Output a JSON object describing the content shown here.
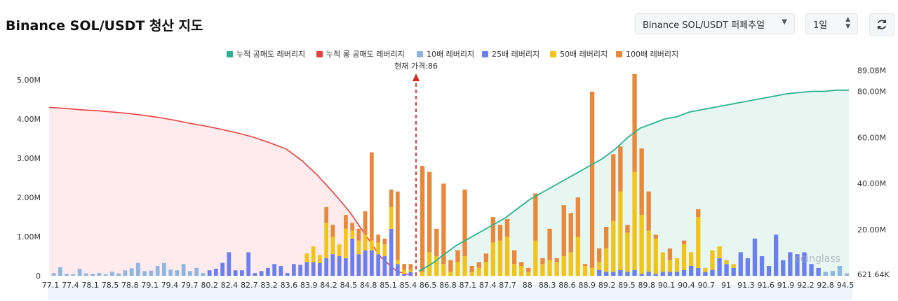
{
  "header": {
    "title": "Binance SOL/USDT 청산 지도",
    "pair_select": "Binance SOL/USDT 퍼페추얼",
    "period_select": "1일",
    "refresh_icon": "refresh-icon"
  },
  "chart_data": {
    "type": "bar",
    "title": "Binance SOL/USDT 청산 지도",
    "current_price_label": "현재 가격:86",
    "current_price": 86,
    "watermark": "coinglass",
    "legend": [
      {
        "name": "누적 공매도 레버리지",
        "color": "#2bb38f"
      },
      {
        "name": "누적 롱 공매도 레버리지",
        "color": "#e8413f"
      },
      {
        "name": "10배 레버리지",
        "color": "#8fb6e0"
      },
      {
        "name": "25배 레버리지",
        "color": "#6b7ff0"
      },
      {
        "name": "50배 레버리지",
        "color": "#f0c419"
      },
      {
        "name": "100배 레버리지",
        "color": "#e8883a"
      }
    ],
    "y_left": {
      "ticks": [
        "5.00M",
        "4.00M",
        "3.00M",
        "2.00M",
        "1.00M",
        "0"
      ],
      "range": [
        0,
        5000000
      ]
    },
    "y_right": {
      "ticks": [
        "89.08M",
        "80.00M",
        "60.00M",
        "40.00M",
        "20.00M",
        "621.64K"
      ],
      "range": [
        0,
        85000000
      ]
    },
    "x_ticks": [
      "77.1",
      "77.4",
      "78.1",
      "78.5",
      "78.8",
      "79.1",
      "79.4",
      "79.7",
      "80.2",
      "82.4",
      "82.7",
      "83.2",
      "83.6",
      "83.9",
      "84.2",
      "84.5",
      "84.8",
      "85.1",
      "85.4",
      "86.5",
      "86.8",
      "87.1",
      "87.4",
      "87.7",
      "88",
      "88.3",
      "88.6",
      "88.9",
      "89.2",
      "89.5",
      "89.8",
      "90.1",
      "90.4",
      "90.7",
      "91",
      "91.3",
      "91.6",
      "91.9",
      "92.2",
      "92.8",
      "94.5"
    ],
    "long_bars": [
      {
        "l10": 0.07,
        "l25": 0,
        "l50": 0,
        "l100": 0
      },
      {
        "l10": 0.22,
        "l25": 0,
        "l50": 0,
        "l100": 0
      },
      {
        "l10": 0.05,
        "l25": 0,
        "l50": 0,
        "l100": 0
      },
      {
        "l10": 0.04,
        "l25": 0,
        "l50": 0,
        "l100": 0
      },
      {
        "l10": 0.18,
        "l25": 0,
        "l50": 0,
        "l100": 0
      },
      {
        "l10": 0.06,
        "l25": 0,
        "l50": 0,
        "l100": 0
      },
      {
        "l10": 0.05,
        "l25": 0,
        "l50": 0,
        "l100": 0
      },
      {
        "l10": 0.07,
        "l25": 0,
        "l50": 0,
        "l100": 0
      },
      {
        "l10": 0.04,
        "l25": 0,
        "l50": 0,
        "l100": 0
      },
      {
        "l10": 0.1,
        "l25": 0,
        "l50": 0,
        "l100": 0
      },
      {
        "l10": 0.06,
        "l25": 0,
        "l50": 0,
        "l100": 0
      },
      {
        "l10": 0.14,
        "l25": 0,
        "l50": 0,
        "l100": 0
      },
      {
        "l10": 0.19,
        "l25": 0,
        "l50": 0,
        "l100": 0
      },
      {
        "l10": 0.33,
        "l25": 0,
        "l50": 0,
        "l100": 0
      },
      {
        "l10": 0.12,
        "l25": 0,
        "l50": 0,
        "l100": 0
      },
      {
        "l10": 0.13,
        "l25": 0,
        "l50": 0,
        "l100": 0
      },
      {
        "l10": 0.25,
        "l25": 0,
        "l50": 0,
        "l100": 0
      },
      {
        "l10": 0.33,
        "l25": 0,
        "l50": 0,
        "l100": 0
      },
      {
        "l10": 0.16,
        "l25": 0,
        "l50": 0,
        "l100": 0
      },
      {
        "l10": 0.14,
        "l25": 0,
        "l50": 0,
        "l100": 0
      },
      {
        "l10": 0.3,
        "l25": 0,
        "l50": 0,
        "l100": 0
      },
      {
        "l10": 0.12,
        "l25": 0,
        "l50": 0,
        "l100": 0
      },
      {
        "l10": 0.2,
        "l25": 0,
        "l50": 0,
        "l100": 0
      },
      {
        "l10": 0.07,
        "l25": 0,
        "l50": 0,
        "l100": 0
      },
      {
        "l10": 0,
        "l25": 0.14,
        "l50": 0,
        "l100": 0
      },
      {
        "l10": 0,
        "l25": 0.18,
        "l50": 0,
        "l100": 0
      },
      {
        "l10": 0,
        "l25": 0.33,
        "l50": 0,
        "l100": 0
      },
      {
        "l10": 0,
        "l25": 0.6,
        "l50": 0,
        "l100": 0
      },
      {
        "l10": 0,
        "l25": 0.14,
        "l50": 0,
        "l100": 0
      },
      {
        "l10": 0,
        "l25": 0.14,
        "l50": 0,
        "l100": 0
      },
      {
        "l10": 0,
        "l25": 0.6,
        "l50": 0,
        "l100": 0
      },
      {
        "l10": 0,
        "l25": 0.07,
        "l50": 0,
        "l100": 0
      },
      {
        "l10": 0,
        "l25": 0.12,
        "l50": 0,
        "l100": 0
      },
      {
        "l10": 0,
        "l25": 0.2,
        "l50": 0,
        "l100": 0
      },
      {
        "l10": 0,
        "l25": 0.3,
        "l50": 0,
        "l100": 0
      },
      {
        "l10": 0,
        "l25": 0.25,
        "l50": 0,
        "l100": 0
      },
      {
        "l10": 0,
        "l25": 0.07,
        "l50": 0,
        "l100": 0
      },
      {
        "l10": 0,
        "l25": 0.3,
        "l50": 0,
        "l100": 0
      },
      {
        "l10": 0,
        "l25": 0.28,
        "l50": 0,
        "l100": 0
      },
      {
        "l10": 0,
        "l25": 0.35,
        "l50": 0.22,
        "l100": 0
      },
      {
        "l10": 0,
        "l25": 0.35,
        "l50": 0.4,
        "l100": 0
      },
      {
        "l10": 0,
        "l25": 0.33,
        "l50": 0.2,
        "l100": 0
      },
      {
        "l10": 0,
        "l25": 0.45,
        "l50": 0.9,
        "l100": 0.4
      },
      {
        "l10": 0,
        "l25": 0.55,
        "l50": 0.45,
        "l100": 0.3
      },
      {
        "l10": 0,
        "l25": 0.5,
        "l50": 0.3,
        "l100": 0
      },
      {
        "l10": 0,
        "l25": 0.45,
        "l50": 0.75,
        "l100": 0.35
      },
      {
        "l10": 0,
        "l25": 0.95,
        "l50": 0.2,
        "l100": 0.2
      },
      {
        "l10": 0,
        "l25": 0.55,
        "l50": 0.35,
        "l100": 0.3
      },
      {
        "l10": 0,
        "l25": 0.65,
        "l50": 0.4,
        "l100": 0.6
      },
      {
        "l10": 0,
        "l25": 0.65,
        "l50": 0.25,
        "l100": 2.25
      },
      {
        "l10": 0,
        "l25": 0.55,
        "l50": 0.3,
        "l100": 0.2
      },
      {
        "l10": 0,
        "l25": 0.5,
        "l50": 0.3,
        "l100": 0.15
      },
      {
        "l10": 0,
        "l25": 1.2,
        "l50": 0.55,
        "l100": 0.45
      },
      {
        "l10": 0,
        "l25": 0.3,
        "l50": 0.1,
        "l100": 1.75
      },
      {
        "l10": 0,
        "l25": 0.05,
        "l50": 0.1,
        "l100": 0.15
      },
      {
        "l10": 0,
        "l25": 0.1,
        "l50": 0.05,
        "l100": 0.15
      }
    ],
    "short_bars": [
      {
        "l10": 0,
        "l25": 0,
        "l50": 0.1,
        "l100": 2.7
      },
      {
        "l10": 0,
        "l25": 0,
        "l50": 0.6,
        "l100": 2.05
      },
      {
        "l10": 0,
        "l25": 0,
        "l50": 0.5,
        "l100": 0.7
      },
      {
        "l10": 0,
        "l25": 0,
        "l50": 0.3,
        "l100": 2.05
      },
      {
        "l10": 0,
        "l25": 0,
        "l50": 0.1,
        "l100": 0.3
      },
      {
        "l10": 0,
        "l25": 0,
        "l50": 0.35,
        "l100": 0.3
      },
      {
        "l10": 0,
        "l25": 0,
        "l50": 0.5,
        "l100": 1.7
      },
      {
        "l10": 0,
        "l25": 0,
        "l50": 0.1,
        "l100": 0.15
      },
      {
        "l10": 0,
        "l25": 0,
        "l50": 0.2,
        "l100": 0.15
      },
      {
        "l10": 0,
        "l25": 0,
        "l50": 0.35,
        "l100": 0.22
      },
      {
        "l10": 0,
        "l25": 0,
        "l50": 0.85,
        "l100": 0.65
      },
      {
        "l10": 0,
        "l25": 0,
        "l50": 0.9,
        "l100": 0.4
      },
      {
        "l10": 0,
        "l25": 0,
        "l50": 1.0,
        "l100": 0.45
      },
      {
        "l10": 0,
        "l25": 0,
        "l50": 0.3,
        "l100": 0.35
      },
      {
        "l10": 0,
        "l25": 0,
        "l50": 0.25,
        "l100": 0.1
      },
      {
        "l10": 0,
        "l25": 0,
        "l50": 0.1,
        "l100": 0.1
      },
      {
        "l10": 0,
        "l25": 0,
        "l50": 0.9,
        "l100": 1.2
      },
      {
        "l10": 0,
        "l25": 0,
        "l50": 0.3,
        "l100": 0.15
      },
      {
        "l10": 0,
        "l25": 0,
        "l50": 0.4,
        "l100": 0.8
      },
      {
        "l10": 0,
        "l25": 0,
        "l50": 0.35,
        "l100": 0.1
      },
      {
        "l10": 0,
        "l25": 0,
        "l50": 0.5,
        "l100": 1.3
      },
      {
        "l10": 0,
        "l25": 0,
        "l50": 0.6,
        "l100": 1.0
      },
      {
        "l10": 0,
        "l25": 0,
        "l50": 1.0,
        "l100": 1.0
      },
      {
        "l10": 0,
        "l25": 0,
        "l50": 0.25,
        "l100": 0.05
      },
      {
        "l10": 0,
        "l25": 0,
        "l50": 0.2,
        "l100": 4.5
      },
      {
        "l10": 0,
        "l25": 0.15,
        "l50": 0.2,
        "l100": 0.35
      },
      {
        "l10": 0,
        "l25": 0.1,
        "l50": 0.6,
        "l100": 0.55
      },
      {
        "l10": 0,
        "l25": 0.1,
        "l50": 1.3,
        "l100": 1.7
      },
      {
        "l10": 0,
        "l25": 0.15,
        "l50": 2.0,
        "l100": 1.15
      },
      {
        "l10": 0,
        "l25": 0.1,
        "l50": 1.0,
        "l100": 0.2
      },
      {
        "l10": 0,
        "l25": 0.15,
        "l50": 2.5,
        "l100": 2.5
      },
      {
        "l10": 0,
        "l25": 0.05,
        "l50": 1.5,
        "l100": 1.7
      },
      {
        "l10": 0,
        "l25": 0.1,
        "l50": 1.05,
        "l100": 1.0
      },
      {
        "l10": 0,
        "l25": 0.05,
        "l50": 0.9,
        "l100": 0.1
      },
      {
        "l10": 0,
        "l25": 0.1,
        "l50": 0.5,
        "l100": 0
      },
      {
        "l10": 0,
        "l25": 0.1,
        "l50": 0.3,
        "l100": 0.3
      },
      {
        "l10": 0,
        "l25": 0.1,
        "l50": 0.35,
        "l100": 0
      },
      {
        "l10": 0,
        "l25": 0.15,
        "l50": 0.65,
        "l100": 0.1
      },
      {
        "l10": 0,
        "l25": 0.25,
        "l50": 0.35,
        "l100": 0
      },
      {
        "l10": 0,
        "l25": 0.2,
        "l50": 1.3,
        "l100": 0.2
      },
      {
        "l10": 0,
        "l25": 0.1,
        "l50": 0.1,
        "l100": 0
      },
      {
        "l10": 0,
        "l25": 0.15,
        "l50": 0.5,
        "l100": 0
      },
      {
        "l10": 0,
        "l25": 0.45,
        "l50": 0.3,
        "l100": 0
      },
      {
        "l10": 0,
        "l25": 0.3,
        "l50": 0.1,
        "l100": 0
      },
      {
        "l10": 0,
        "l25": 0.2,
        "l50": 0.1,
        "l100": 0
      },
      {
        "l10": 0,
        "l25": 0.6,
        "l50": 0,
        "l100": 0
      },
      {
        "l10": 0,
        "l25": 0.45,
        "l50": 0,
        "l100": 0
      },
      {
        "l10": 0,
        "l25": 0.95,
        "l50": 0,
        "l100": 0
      },
      {
        "l10": 0,
        "l25": 0.5,
        "l50": 0,
        "l100": 0
      },
      {
        "l10": 0,
        "l25": 0.25,
        "l50": 0,
        "l100": 0
      },
      {
        "l10": 0,
        "l25": 1.05,
        "l50": 0,
        "l100": 0
      },
      {
        "l10": 0,
        "l25": 0.4,
        "l50": 0,
        "l100": 0
      },
      {
        "l10": 0,
        "l25": 0.6,
        "l50": 0,
        "l100": 0
      },
      {
        "l10": 0,
        "l25": 0.55,
        "l50": 0,
        "l100": 0
      },
      {
        "l10": 0,
        "l25": 0.6,
        "l50": 0,
        "l100": 0
      },
      {
        "l10": 0,
        "l25": 0.3,
        "l50": 0,
        "l100": 0
      },
      {
        "l10": 0,
        "l25": 0.2,
        "l50": 0,
        "l100": 0
      },
      {
        "l10": 0.1,
        "l25": 0,
        "l50": 0,
        "l100": 0
      },
      {
        "l10": 0.12,
        "l25": 0,
        "l50": 0,
        "l100": 0
      },
      {
        "l10": 0.25,
        "l25": 0,
        "l50": 0,
        "l100": 0
      },
      {
        "l10": 0.06,
        "l25": 0,
        "l50": 0,
        "l100": 0
      }
    ],
    "cumulative_long_m": [
      73.0,
      72.6,
      72.0,
      71.6,
      71.0,
      70.4,
      69.6,
      68.6,
      67.4,
      66.0,
      64.8,
      63.4,
      61.8,
      60.0,
      57.6,
      55.0,
      50.0,
      43.5,
      36.0,
      28.0,
      18.0,
      8.0,
      2.0,
      0
    ],
    "cumulative_short_m": [
      2,
      5,
      9,
      13,
      16,
      19,
      22,
      25,
      29,
      33,
      36,
      39,
      42,
      45,
      48,
      51,
      55,
      60,
      64,
      66,
      68,
      69,
      71,
      72,
      73,
      74,
      75,
      76,
      77,
      78,
      79,
      79.5,
      80,
      80,
      80.5,
      80.5
    ]
  }
}
